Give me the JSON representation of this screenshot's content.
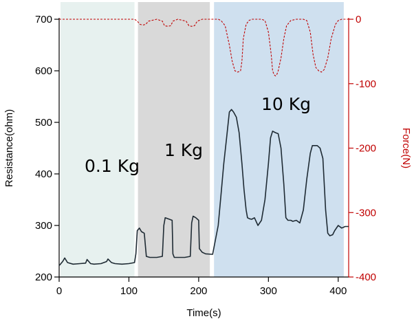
{
  "chart_data": {
    "type": "line",
    "xlabel": "Time(s)",
    "ylabel_left": "Resistance(ohm)",
    "ylabel_right": "Force(N)",
    "xlim": [
      0,
      415
    ],
    "ylim_left": [
      200,
      700
    ],
    "ylim_right": [
      -400,
      0
    ],
    "x_ticks": [
      0,
      100,
      200,
      300,
      400
    ],
    "y_ticks_left": [
      200,
      300,
      400,
      500,
      600,
      700
    ],
    "y_ticks_right": [
      0,
      -100,
      -200,
      -300,
      -400
    ],
    "grid": false,
    "colors": {
      "resistance": "#1e2a33",
      "force": "#c00000",
      "right_axis": "#c00000",
      "region_0_1kg": "#e7f1ef",
      "region_1kg": "#d9d9d9",
      "region_10kg": "#cfe0ef"
    },
    "regions": [
      {
        "label": "0.1 Kg",
        "x_start": 2,
        "x_end": 108
      },
      {
        "label": "1 Kg",
        "x_start": 113,
        "x_end": 216
      },
      {
        "label": "10 Kg",
        "x_start": 222,
        "x_end": 408
      }
    ],
    "series": [
      {
        "axis": "left",
        "style": "solid",
        "x": [
          0,
          5,
          8,
          12,
          20,
          30,
          38,
          40,
          45,
          50,
          60,
          68,
          70,
          75,
          80,
          90,
          100,
          108,
          110,
          112,
          115,
          118,
          122,
          125,
          130,
          140,
          148,
          150,
          152,
          158,
          162,
          163,
          165,
          170,
          180,
          188,
          190,
          192,
          196,
          200,
          201,
          205,
          210,
          220,
          228,
          232,
          236,
          240,
          244,
          247,
          250,
          254,
          258,
          262,
          265,
          268,
          270,
          273,
          276,
          280,
          285,
          290,
          295,
          300,
          303,
          306,
          310,
          314,
          318,
          322,
          325,
          328,
          332,
          335,
          340,
          345,
          350,
          355,
          360,
          363,
          366,
          370,
          374,
          378,
          382,
          385,
          388,
          392,
          395,
          400,
          405,
          410,
          415
        ],
        "y": [
          222,
          230,
          237,
          228,
          225,
          226,
          227,
          234,
          226,
          225,
          226,
          230,
          235,
          228,
          226,
          225,
          226,
          228,
          245,
          290,
          295,
          288,
          285,
          240,
          238,
          238,
          240,
          300,
          315,
          312,
          310,
          245,
          238,
          238,
          238,
          240,
          305,
          318,
          315,
          310,
          255,
          248,
          245,
          244,
          300,
          360,
          420,
          470,
          520,
          525,
          520,
          510,
          480,
          420,
          370,
          330,
          315,
          313,
          312,
          315,
          300,
          310,
          350,
          420,
          470,
          483,
          480,
          478,
          450,
          380,
          315,
          310,
          310,
          308,
          310,
          305,
          330,
          390,
          440,
          455,
          455,
          455,
          450,
          430,
          330,
          285,
          280,
          282,
          290,
          300,
          295,
          298,
          298
        ]
      },
      {
        "axis": "right",
        "style": "dashed",
        "x": [
          0,
          20,
          40,
          60,
          80,
          100,
          108,
          112,
          116,
          120,
          124,
          128,
          140,
          148,
          151,
          156,
          160,
          163,
          170,
          182,
          186,
          190,
          194,
          198,
          205,
          220,
          228,
          232,
          238,
          244,
          248,
          252,
          256,
          260,
          262,
          264,
          268,
          272,
          276,
          282,
          290,
          295,
          300,
          304,
          306,
          308,
          310,
          312,
          314,
          318,
          322,
          326,
          332,
          340,
          345,
          350,
          355,
          360,
          364,
          368,
          372,
          376,
          380,
          385,
          390,
          396,
          400,
          405,
          410,
          415
        ],
        "y": [
          0,
          0,
          0,
          0,
          0,
          0,
          0,
          -3,
          -8,
          -9,
          -8,
          -3,
          0,
          -3,
          -10,
          -11,
          -10,
          -3,
          0,
          -3,
          -10,
          -11,
          -10,
          -3,
          0,
          0,
          0,
          -2,
          -10,
          -40,
          -65,
          -80,
          -82,
          -80,
          -65,
          -30,
          -8,
          -2,
          0,
          0,
          0,
          -2,
          -20,
          -55,
          -80,
          -86,
          -88,
          -86,
          -80,
          -60,
          -30,
          -10,
          -2,
          0,
          0,
          0,
          -2,
          -20,
          -55,
          -75,
          -80,
          -82,
          -78,
          -60,
          -30,
          -8,
          -2,
          0,
          0,
          0
        ]
      }
    ]
  }
}
